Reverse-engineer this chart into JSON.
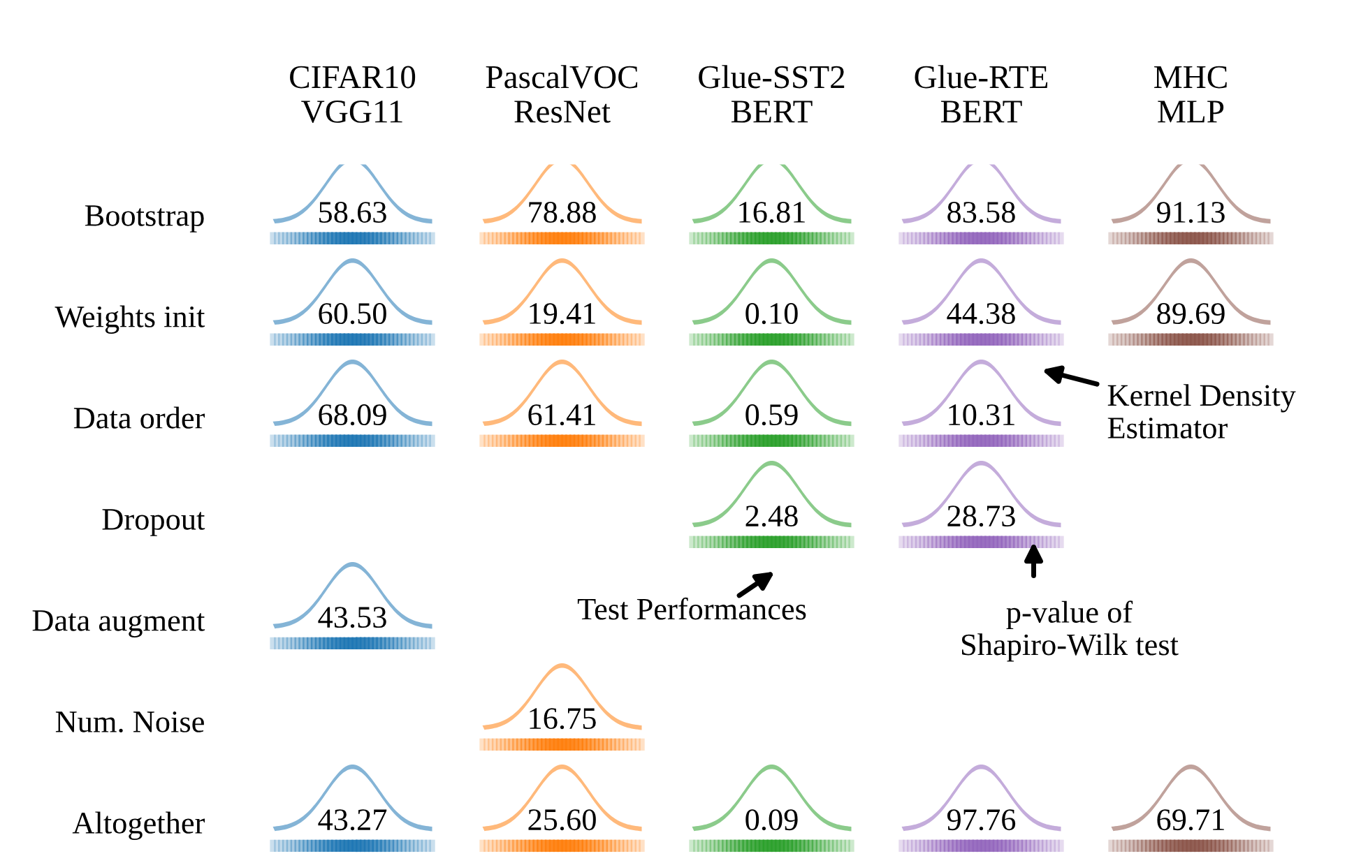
{
  "chart_data": {
    "type": "heatmap",
    "categories": [
      "CIFAR10\nVGG11",
      "PascalVOC\nResNet",
      "Glue-SST2\nBERT",
      "Glue-RTE\nBERT",
      "MHC\nMLP"
    ],
    "y_categories": [
      "Bootstrap",
      "Weights init",
      "Data order",
      "Dropout",
      "Data augment",
      "Num. Noise",
      "Altogether"
    ],
    "colors": [
      "#1f77b4",
      "#ff7f0e",
      "#2ca02c",
      "#9467bd",
      "#8c564b"
    ],
    "cells": [
      [
        58.63,
        78.88,
        16.81,
        83.58,
        91.13
      ],
      [
        60.5,
        19.41,
        0.1,
        44.38,
        89.69
      ],
      [
        68.09,
        61.41,
        0.59,
        10.31,
        null
      ],
      [
        null,
        null,
        2.48,
        28.73,
        null
      ],
      [
        43.53,
        null,
        null,
        null,
        null
      ],
      [
        null,
        16.75,
        null,
        null,
        null
      ],
      [
        43.27,
        25.6,
        0.09,
        97.76,
        69.71
      ]
    ],
    "data_labels": true,
    "cell_labels": [
      [
        "58.63",
        "78.88",
        "16.81",
        "83.58",
        "91.13"
      ],
      [
        "60.50",
        "19.41",
        "0.10",
        "44.38",
        "89.69"
      ],
      [
        "68.09",
        "61.41",
        "0.59",
        "10.31",
        null
      ],
      [
        null,
        null,
        "2.48",
        "28.73",
        null
      ],
      [
        "43.53",
        null,
        null,
        null,
        null
      ],
      [
        null,
        "16.75",
        null,
        null,
        null
      ],
      [
        "43.27",
        "25.60",
        "0.09",
        "97.76",
        "69.71"
      ]
    ],
    "annotations": [
      "Kernel Density\nEstimator",
      "Test Performances",
      "p-value of\nShapiro-Wilk test"
    ]
  }
}
